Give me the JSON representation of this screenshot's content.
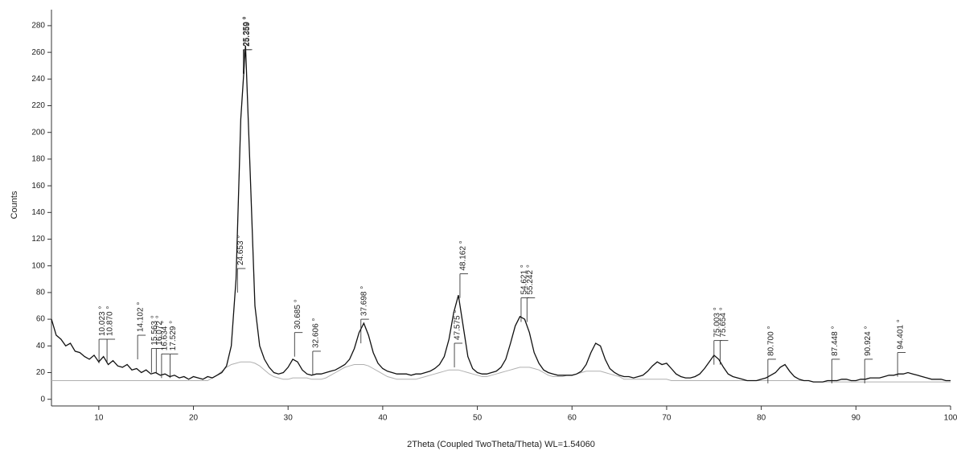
{
  "chart_data": {
    "type": "line",
    "y_label": "Counts",
    "x_label": "2Theta (Coupled TwoTheta/Theta) WL=1.54060",
    "xlim": [
      5,
      100
    ],
    "ylim": [
      -5,
      292
    ],
    "xticks": [
      10,
      20,
      30,
      40,
      50,
      60,
      70,
      80,
      90,
      100
    ],
    "yticks": [
      0,
      20,
      40,
      60,
      80,
      100,
      120,
      140,
      160,
      180,
      200,
      220,
      240,
      260,
      280
    ],
    "x": [
      5,
      5.5,
      6,
      6.5,
      7,
      7.5,
      8,
      8.5,
      9,
      9.5,
      10,
      10.5,
      11,
      11.5,
      12,
      12.5,
      13,
      13.5,
      14,
      14.5,
      15,
      15.5,
      16,
      16.5,
      17,
      17.5,
      18,
      18.5,
      19,
      19.5,
      20,
      20.5,
      21,
      21.5,
      22,
      22.5,
      23,
      23.5,
      24,
      24.5,
      25,
      25.5,
      26,
      26.5,
      27,
      27.5,
      28,
      28.5,
      29,
      29.5,
      30,
      30.5,
      31,
      31.5,
      32,
      32.5,
      33,
      33.5,
      34,
      34.5,
      35,
      35.5,
      36,
      36.5,
      37,
      37.5,
      38,
      38.5,
      39,
      39.5,
      40,
      40.5,
      41,
      41.5,
      42,
      42.5,
      43,
      43.5,
      44,
      44.5,
      45,
      45.5,
      46,
      46.5,
      47,
      47.5,
      48,
      48.5,
      49,
      49.5,
      50,
      50.5,
      51,
      51.5,
      52,
      52.5,
      53,
      53.5,
      54,
      54.5,
      55,
      55.5,
      56,
      56.5,
      57,
      57.5,
      58,
      58.5,
      59,
      59.5,
      60,
      60.5,
      61,
      61.5,
      62,
      62.5,
      63,
      63.5,
      64,
      64.5,
      65,
      65.5,
      66,
      66.5,
      67,
      67.5,
      68,
      68.5,
      69,
      69.5,
      70,
      70.5,
      71,
      71.5,
      72,
      72.5,
      73,
      73.5,
      74,
      74.5,
      75,
      75.5,
      76,
      76.5,
      77,
      77.5,
      78,
      78.5,
      79,
      79.5,
      80,
      80.5,
      81,
      81.5,
      82,
      82.5,
      83,
      83.5,
      84,
      84.5,
      85,
      85.5,
      86,
      86.5,
      87,
      87.5,
      88,
      88.5,
      89,
      89.5,
      90,
      90.5,
      91,
      91.5,
      92,
      92.5,
      93,
      93.5,
      94,
      94.5,
      95,
      95.5,
      96,
      96.5,
      97,
      97.5,
      98,
      98.5,
      99,
      99.5,
      100
    ],
    "series": [
      {
        "color": "#111111",
        "values": [
          60,
          48,
          45,
          40,
          42,
          36,
          35,
          32,
          30,
          33,
          28,
          32,
          26,
          29,
          25,
          24,
          26,
          22,
          23,
          20,
          22,
          19,
          20,
          18,
          19,
          17,
          18,
          16,
          17,
          15,
          17,
          16,
          15,
          17,
          16,
          18,
          20,
          25,
          40,
          90,
          210,
          265,
          170,
          70,
          40,
          30,
          24,
          20,
          19,
          20,
          24,
          30,
          28,
          22,
          19,
          18,
          19,
          19,
          20,
          21,
          22,
          24,
          26,
          30,
          38,
          50,
          57,
          48,
          35,
          27,
          23,
          21,
          20,
          19,
          19,
          19,
          18,
          19,
          19,
          20,
          21,
          23,
          26,
          32,
          45,
          65,
          78,
          55,
          32,
          23,
          20,
          19,
          19,
          20,
          21,
          24,
          30,
          42,
          55,
          62,
          60,
          50,
          35,
          27,
          22,
          20,
          19,
          18,
          18,
          18,
          18,
          19,
          21,
          26,
          35,
          42,
          40,
          30,
          23,
          20,
          18,
          17,
          17,
          16,
          17,
          18,
          21,
          25,
          28,
          26,
          27,
          23,
          19,
          17,
          16,
          16,
          17,
          19,
          23,
          28,
          33,
          30,
          24,
          19,
          17,
          16,
          15,
          14,
          14,
          14,
          15,
          16,
          18,
          20,
          24,
          26,
          21,
          17,
          15,
          14,
          14,
          13,
          13,
          13,
          14,
          14,
          14,
          15,
          15,
          14,
          14,
          15,
          15,
          16,
          16,
          16,
          17,
          18,
          18,
          19,
          19,
          20,
          19,
          18,
          17,
          16,
          15,
          15,
          15,
          14,
          14
        ]
      },
      {
        "color": "#b0b0b0",
        "values": [
          14,
          14,
          14,
          14,
          14,
          14,
          14,
          14,
          14,
          14,
          14,
          14,
          14,
          14,
          14,
          14,
          14,
          14,
          14,
          14,
          14,
          14,
          14,
          14,
          14,
          14,
          14,
          14,
          14,
          14,
          14,
          14,
          14,
          14,
          16,
          18,
          21,
          24,
          26,
          27,
          28,
          28,
          28,
          27,
          25,
          22,
          19,
          17,
          16,
          15,
          15,
          16,
          16,
          16,
          16,
          15,
          15,
          15,
          16,
          18,
          20,
          22,
          24,
          25,
          26,
          26,
          26,
          25,
          23,
          21,
          19,
          17,
          16,
          15,
          15,
          15,
          15,
          15,
          16,
          17,
          18,
          19,
          20,
          21,
          22,
          22,
          22,
          21,
          20,
          19,
          18,
          17,
          17,
          18,
          19,
          20,
          21,
          22,
          23,
          24,
          24,
          24,
          23,
          22,
          20,
          18,
          17,
          17,
          17,
          18,
          18,
          19,
          20,
          21,
          21,
          21,
          21,
          20,
          19,
          18,
          17,
          15,
          15,
          15,
          15,
          15,
          15,
          15,
          15,
          15,
          15,
          14,
          14,
          14,
          14,
          14,
          14,
          14,
          14,
          14,
          14,
          14,
          14,
          14,
          14,
          14,
          14,
          14,
          14,
          14,
          14,
          14,
          14,
          14,
          14,
          14,
          14,
          14,
          14,
          14,
          14,
          13,
          13,
          13,
          13,
          13,
          13,
          13,
          13,
          13,
          13,
          13,
          13,
          13,
          13,
          13,
          13,
          13,
          13,
          13,
          13,
          13,
          13,
          13,
          13,
          13,
          13,
          13,
          13,
          13,
          13
        ]
      }
    ],
    "annotations": [
      {
        "label": "10.023 °",
        "x": 10.023,
        "y": 45
      },
      {
        "label": "10.870 °",
        "x": 10.87,
        "y": 45
      },
      {
        "label": "14.102 °",
        "x": 14.102,
        "y": 48
      },
      {
        "label": "15.563 °",
        "x": 15.563,
        "y": 38
      },
      {
        "label": "16.072 °",
        "x": 16.072,
        "y": 38
      },
      {
        "label": "16.634 °",
        "x": 16.634,
        "y": 34
      },
      {
        "label": "17.529 °",
        "x": 17.529,
        "y": 34
      },
      {
        "label": "24.653 °",
        "x": 24.653,
        "y": 98
      },
      {
        "label": "25.259 °",
        "x": 25.259,
        "y": 262
      },
      {
        "label": "25.359 °",
        "x": 25.359,
        "y": 262
      },
      {
        "label": "30.685 °",
        "x": 30.685,
        "y": 50
      },
      {
        "label": "32.606 °",
        "x": 32.606,
        "y": 36
      },
      {
        "label": "37.698 °",
        "x": 37.698,
        "y": 60
      },
      {
        "label": "47.575 °",
        "x": 47.575,
        "y": 42
      },
      {
        "label": "48.162 °",
        "x": 48.162,
        "y": 94
      },
      {
        "label": "54.621 °",
        "x": 54.621,
        "y": 76
      },
      {
        "label": "55.242 °",
        "x": 55.242,
        "y": 76
      },
      {
        "label": "75.003 °",
        "x": 75.003,
        "y": 44
      },
      {
        "label": "75.654 °",
        "x": 75.654,
        "y": 44
      },
      {
        "label": "80.700 °",
        "x": 80.7,
        "y": 30
      },
      {
        "label": "87.448 °",
        "x": 87.448,
        "y": 30
      },
      {
        "label": "90.924 °",
        "x": 90.924,
        "y": 30
      },
      {
        "label": "94.401 °",
        "x": 94.401,
        "y": 35
      }
    ]
  }
}
